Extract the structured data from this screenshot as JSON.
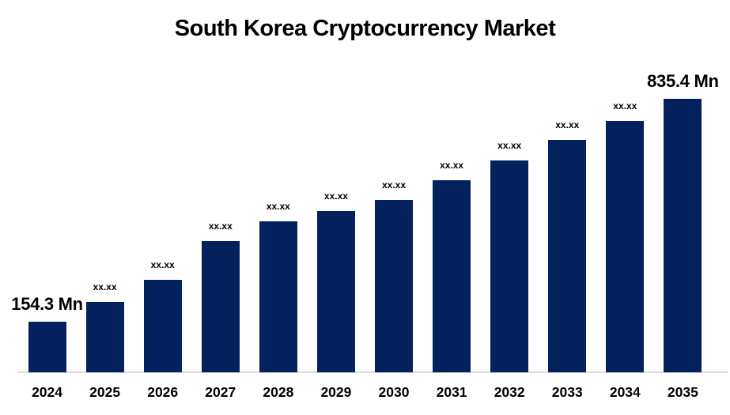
{
  "title": "South Korea Cryptocurrency Market",
  "chart_data": {
    "type": "bar",
    "title": "South Korea Cryptocurrency Market",
    "categories": [
      "2024",
      "2025",
      "2026",
      "2027",
      "2028",
      "2029",
      "2030",
      "2031",
      "2032",
      "2033",
      "2034",
      "2035"
    ],
    "values": [
      154.3,
      215,
      282,
      400,
      462,
      493,
      527,
      587,
      647,
      710,
      768,
      835.4
    ],
    "value_labels": [
      "154.3 Mn",
      "xx.xx",
      "xx.xx",
      "xx.xx",
      "xx.xx",
      "xx.xx",
      "xx.xx",
      "xx.xx",
      "xx.xx",
      "xx.xx",
      "xx.xx",
      "835.4 Mn"
    ],
    "unit": "Mn",
    "xlabel": "",
    "ylabel": "",
    "ylim": [
      0,
      880
    ],
    "grid": false,
    "legend": false,
    "y_axis_visible": false,
    "bar_color": "#03215C",
    "axis_line_color": "#D9D9D9",
    "text_color": "#000000",
    "background": "#FFFFFF"
  }
}
